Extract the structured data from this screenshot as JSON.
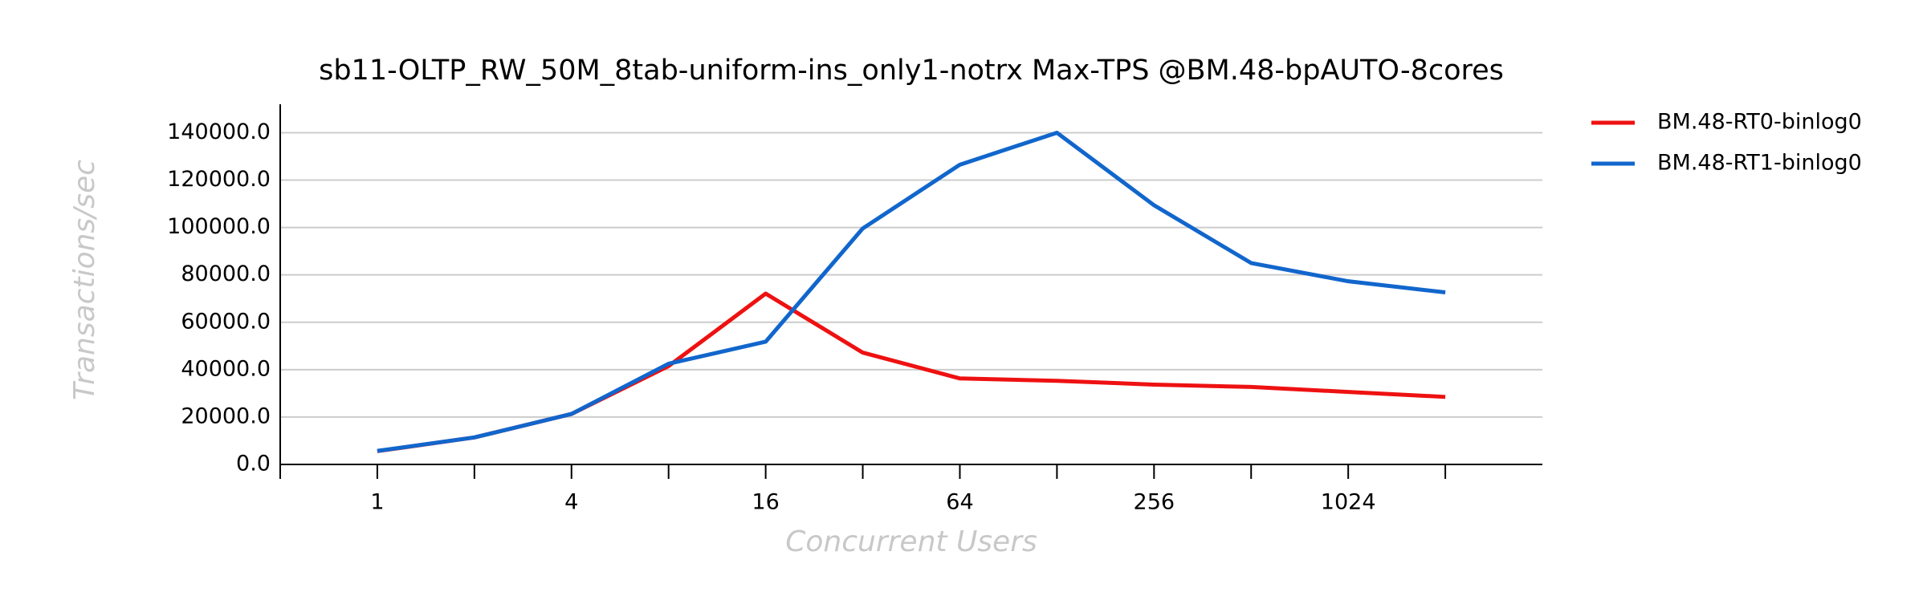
{
  "chart_data": {
    "type": "line",
    "title": "sb11-OLTP_RW_50M_8tab-uniform-ins_only1-notrx Max-TPS @BM.48-bpAUTO-8cores",
    "xlabel": "Concurrent Users",
    "ylabel": "Transactions/sec",
    "x": [
      1,
      2,
      4,
      8,
      16,
      32,
      64,
      128,
      256,
      512,
      1024,
      2048
    ],
    "xscale": "log2",
    "xlim": [
      0.5,
      4096
    ],
    "xticks": [
      1,
      4,
      16,
      64,
      256,
      1024
    ],
    "xminor_ticks": [
      0.5,
      2,
      8,
      32,
      128,
      512,
      2048
    ],
    "ylim": [
      0,
      152000
    ],
    "yticks": [
      {
        "value": 0,
        "label": "0.0"
      },
      {
        "value": 20000,
        "label": "20000.0"
      },
      {
        "value": 40000,
        "label": "40000.0"
      },
      {
        "value": 60000,
        "label": "60000.0"
      },
      {
        "value": 80000,
        "label": "80000.0"
      },
      {
        "value": 100000,
        "label": "100000.0"
      },
      {
        "value": 120000,
        "label": "120000.0"
      },
      {
        "value": 140000,
        "label": "140000.0"
      }
    ],
    "grid": true,
    "legend": "outside-right",
    "series": [
      {
        "name": "BM.48-RT0-binlog0",
        "color": "#ee1111",
        "values": [
          5600,
          11400,
          21300,
          41500,
          72100,
          47200,
          36300,
          35300,
          33700,
          32700,
          30600,
          28500
        ]
      },
      {
        "name": "BM.48-RT1-binlog0",
        "color": "#1166cc",
        "values": [
          5700,
          11400,
          21300,
          42500,
          51800,
          99600,
          126500,
          140000,
          109400,
          85000,
          77300,
          72600
        ]
      }
    ]
  }
}
